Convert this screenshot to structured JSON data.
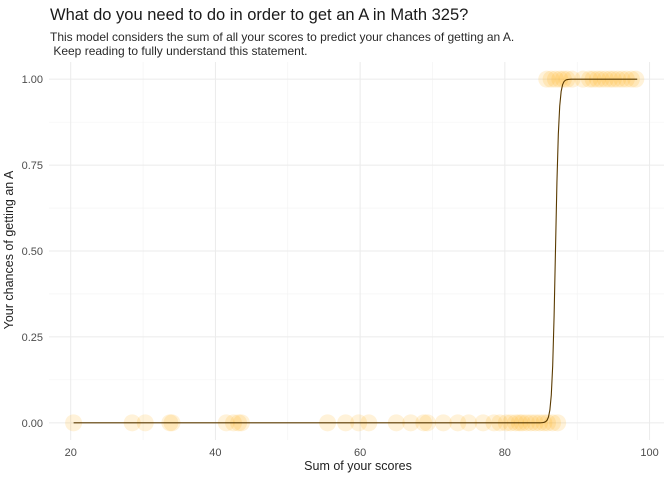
{
  "chart_data": {
    "type": "scatter",
    "title": "What do you need to do in order to get an A in Math 325?",
    "subtitle_lines": [
      "This model considers the sum of all your scores to predict your chances of getting an A.",
      " Keep reading to fully understand this statement."
    ],
    "xlabel": "Sum of your scores",
    "ylabel": "Your chances of getting an A",
    "xlim": [
      17,
      102
    ],
    "ylim": [
      -0.05,
      1.05
    ],
    "xticks": [
      20,
      40,
      60,
      80,
      100
    ],
    "yticks": [
      0.0,
      0.25,
      0.5,
      0.75,
      1.0
    ],
    "ytick_labels": [
      "0.00",
      "0.25",
      "0.50",
      "0.75",
      "1.00"
    ],
    "grid": true,
    "point_color": "#FFA500",
    "point_alpha": 0.15,
    "curve_color": "#5a3a00",
    "series": [
      {
        "values": [
          {
            "x": 20.4,
            "y": 0
          },
          {
            "x": 28.5,
            "y": 0
          },
          {
            "x": 30.3,
            "y": 0
          },
          {
            "x": 33.7,
            "y": 0
          },
          {
            "x": 34.0,
            "y": 0
          },
          {
            "x": 41.5,
            "y": 0
          },
          {
            "x": 42.5,
            "y": 0
          },
          {
            "x": 43.2,
            "y": 0
          },
          {
            "x": 43.6,
            "y": 0
          },
          {
            "x": 55.5,
            "y": 0
          },
          {
            "x": 58.0,
            "y": 0
          },
          {
            "x": 59.8,
            "y": 0
          },
          {
            "x": 61.2,
            "y": 0
          },
          {
            "x": 65.0,
            "y": 0
          },
          {
            "x": 67.0,
            "y": 0
          },
          {
            "x": 68.8,
            "y": 0
          },
          {
            "x": 69.3,
            "y": 0
          },
          {
            "x": 71.5,
            "y": 0
          },
          {
            "x": 73.5,
            "y": 0
          },
          {
            "x": 75.0,
            "y": 0
          },
          {
            "x": 77.0,
            "y": 0
          },
          {
            "x": 78.5,
            "y": 0
          },
          {
            "x": 79.3,
            "y": 0
          },
          {
            "x": 80.2,
            "y": 0
          },
          {
            "x": 80.8,
            "y": 0
          },
          {
            "x": 81.5,
            "y": 0
          },
          {
            "x": 82.0,
            "y": 0
          },
          {
            "x": 82.4,
            "y": 0
          },
          {
            "x": 83.0,
            "y": 0
          },
          {
            "x": 83.6,
            "y": 0
          },
          {
            "x": 84.2,
            "y": 0
          },
          {
            "x": 84.8,
            "y": 0
          },
          {
            "x": 85.4,
            "y": 0
          },
          {
            "x": 85.9,
            "y": 0
          },
          {
            "x": 86.6,
            "y": 0
          },
          {
            "x": 87.3,
            "y": 0
          },
          {
            "x": 85.8,
            "y": 1
          },
          {
            "x": 86.4,
            "y": 1
          },
          {
            "x": 87.0,
            "y": 1
          },
          {
            "x": 87.6,
            "y": 1
          },
          {
            "x": 88.1,
            "y": 1
          },
          {
            "x": 88.6,
            "y": 1
          },
          {
            "x": 89.3,
            "y": 1
          },
          {
            "x": 90.8,
            "y": 1
          },
          {
            "x": 91.7,
            "y": 1
          },
          {
            "x": 92.2,
            "y": 1
          },
          {
            "x": 92.8,
            "y": 1
          },
          {
            "x": 93.3,
            "y": 1
          },
          {
            "x": 93.9,
            "y": 1
          },
          {
            "x": 94.5,
            "y": 1
          },
          {
            "x": 95.0,
            "y": 1
          },
          {
            "x": 95.6,
            "y": 1
          },
          {
            "x": 96.2,
            "y": 1
          },
          {
            "x": 96.8,
            "y": 1
          },
          {
            "x": 97.5,
            "y": 1
          },
          {
            "x": 98.1,
            "y": 1
          }
        ]
      }
    ],
    "curve": {
      "type": "logistic",
      "midpoint": 87.0,
      "slope": 4.2,
      "x_range": [
        20.4,
        98.3
      ]
    }
  }
}
